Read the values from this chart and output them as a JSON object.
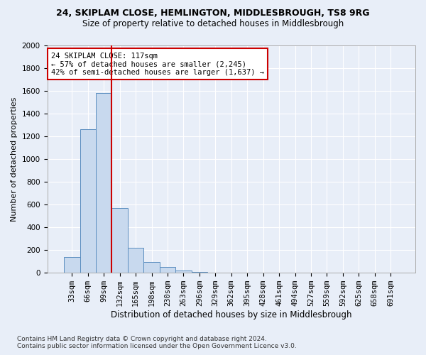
{
  "title1": "24, SKIPLAM CLOSE, HEMLINGTON, MIDDLESBROUGH, TS8 9RG",
  "title2": "Size of property relative to detached houses in Middlesbrough",
  "xlabel": "Distribution of detached houses by size in Middlesbrough",
  "ylabel": "Number of detached properties",
  "footnote": "Contains HM Land Registry data © Crown copyright and database right 2024.\nContains public sector information licensed under the Open Government Licence v3.0.",
  "bar_labels": [
    "33sqm",
    "66sqm",
    "99sqm",
    "132sqm",
    "165sqm",
    "198sqm",
    "230sqm",
    "263sqm",
    "296sqm",
    "329sqm",
    "362sqm",
    "395sqm",
    "428sqm",
    "461sqm",
    "494sqm",
    "527sqm",
    "559sqm",
    "592sqm",
    "625sqm",
    "658sqm",
    "691sqm"
  ],
  "bar_values": [
    140,
    1265,
    1580,
    570,
    220,
    95,
    50,
    20,
    5,
    2,
    1,
    0,
    0,
    0,
    0,
    0,
    0,
    0,
    0,
    0,
    0
  ],
  "bar_color": "#c8d9ee",
  "bar_edge_color": "#5a8dbf",
  "vline_x_idx": 2.5,
  "vline_color": "#cc0000",
  "annotation_text": "24 SKIPLAM CLOSE: 117sqm\n← 57% of detached houses are smaller (2,245)\n42% of semi-detached houses are larger (1,637) →",
  "annotation_box_color": "white",
  "annotation_box_edge_color": "#cc0000",
  "ylim": [
    0,
    2000
  ],
  "yticks": [
    0,
    200,
    400,
    600,
    800,
    1000,
    1200,
    1400,
    1600,
    1800,
    2000
  ],
  "background_color": "#e8eef8",
  "grid_color": "white",
  "title1_fontsize": 9,
  "title2_fontsize": 8.5,
  "xlabel_fontsize": 8.5,
  "ylabel_fontsize": 8,
  "tick_fontsize": 7.5,
  "footnote_fontsize": 6.5
}
